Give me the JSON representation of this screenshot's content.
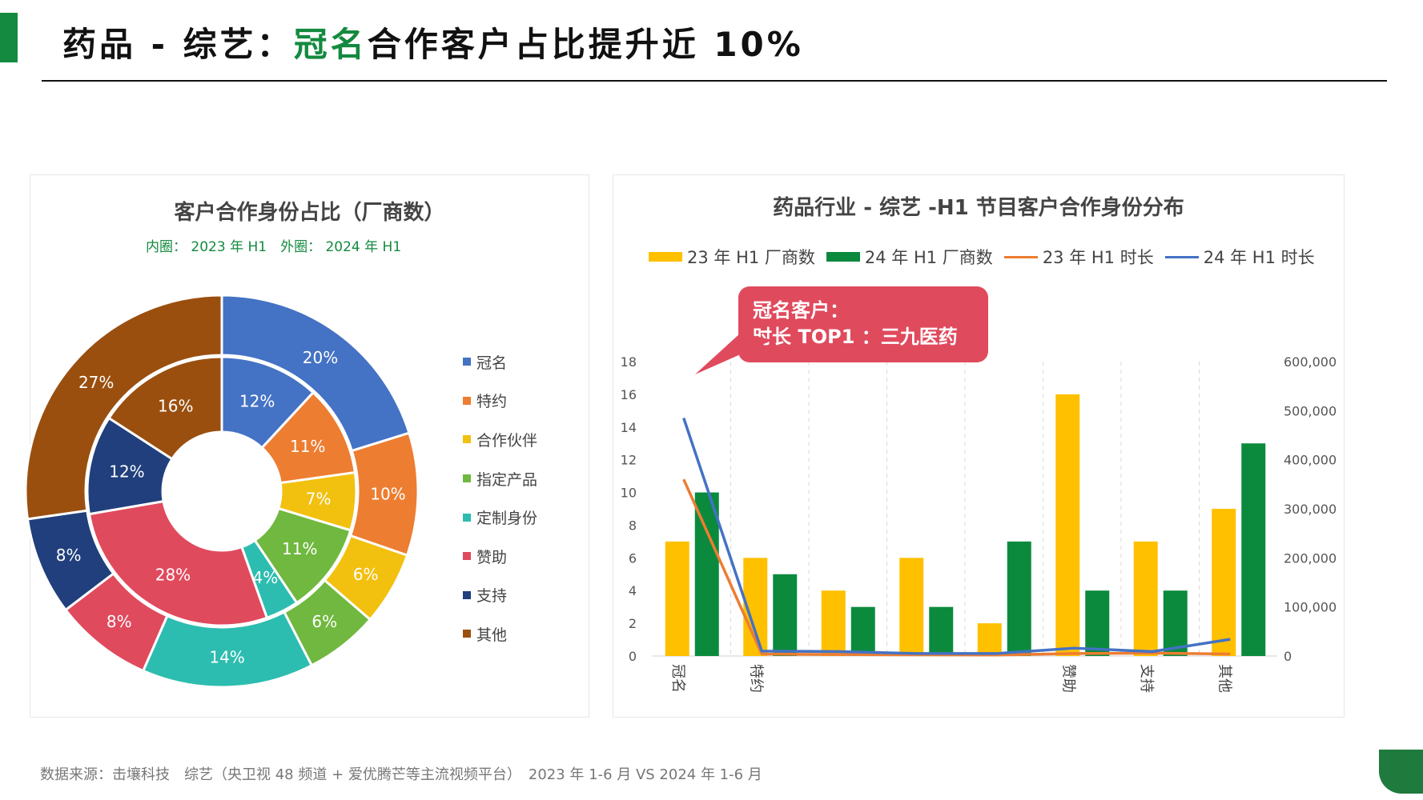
{
  "header": {
    "title_prefix": "药品 - 综艺：",
    "title_highlight": "冠名",
    "title_suffix": "合作客户占比提升近 10%"
  },
  "left_panel": {
    "title": "客户合作身份占比（厂商数）",
    "subtitle": "内圈： 2023 年 H1　外圈： 2024 年 H1"
  },
  "right_panel": {
    "title": "药品行业 - 综艺 -H1 节目客户合作身份分布",
    "callout_line1": "冠名客户：",
    "callout_line2": "时长 TOP1 ：三九医药"
  },
  "footer": {
    "source": "数据来源：击壤科技　综艺（央卫视 48 频道 + 爱优腾芒等主流视频平台）　2023 年 1-6 月  VS 2024 年 1-6 月"
  },
  "colors": {
    "brand": "#138a3f",
    "callout": "#e04a5d"
  },
  "chart_data": [
    {
      "type": "pie",
      "title": "客户合作身份占比（厂商数）",
      "legend_position": "right",
      "categories": [
        "冠名",
        "特约",
        "合作伙伴",
        "指定产品",
        "定制身份",
        "赞助",
        "支持",
        "其他"
      ],
      "colors": [
        "#4472c4",
        "#ed7d31",
        "#f2c00f",
        "#70b83f",
        "#2dbdb0",
        "#e04a5d",
        "#203f7c",
        "#9a4f0f"
      ],
      "series": [
        {
          "name": "2023 年 H1",
          "ring": "inner",
          "values": [
            12,
            11,
            7,
            11,
            4,
            28,
            12,
            16
          ],
          "labels": [
            "12%",
            "11%",
            "7%",
            "11%",
            "4%",
            "28%",
            "12%",
            "16%"
          ]
        },
        {
          "name": "2024 年 H1",
          "ring": "outer",
          "values": [
            20,
            10,
            6,
            6,
            14,
            8,
            8,
            27
          ],
          "labels": [
            "20%",
            "10%",
            "6%",
            "6%",
            "14%",
            "8%",
            "8%",
            "27%"
          ]
        }
      ]
    },
    {
      "type": "bar",
      "title": "药品行业 - 综艺 -H1 节目客户合作身份分布",
      "legend_position": "top",
      "categories": [
        "冠名",
        "特约",
        "",
        "",
        "",
        "赞助",
        "支持",
        "其他"
      ],
      "y_left_ticks": [
        "0",
        "2",
        "4",
        "6",
        "8",
        "10",
        "12",
        "14",
        "16",
        "18"
      ],
      "y_right_ticks": [
        "0",
        "100,000",
        "200,000",
        "300,000",
        "400,000",
        "500,000",
        "600,000"
      ],
      "ylim_left": [
        0,
        18
      ],
      "ylim_right": [
        0,
        600000
      ],
      "series": [
        {
          "name": "23 年 H1 厂商数",
          "kind": "bar",
          "axis": "left",
          "color": "#ffc000",
          "values": [
            7,
            6,
            4,
            6,
            2,
            16,
            7,
            9
          ]
        },
        {
          "name": "24 年 H1 厂商数",
          "kind": "bar",
          "axis": "left",
          "color": "#0b8a3e",
          "values": [
            10,
            5,
            3,
            3,
            7,
            4,
            4,
            13
          ]
        },
        {
          "name": "23 年 H1 时长",
          "kind": "line",
          "axis": "right",
          "color": "#ed7d31",
          "values": [
            360000,
            4000,
            3000,
            2500,
            2000,
            5000,
            6000,
            4000
          ]
        },
        {
          "name": "24 年 H1 时长",
          "kind": "line",
          "axis": "right",
          "color": "#4472c4",
          "values": [
            485000,
            10000,
            9000,
            5000,
            5000,
            16000,
            9000,
            34000
          ]
        }
      ]
    }
  ]
}
